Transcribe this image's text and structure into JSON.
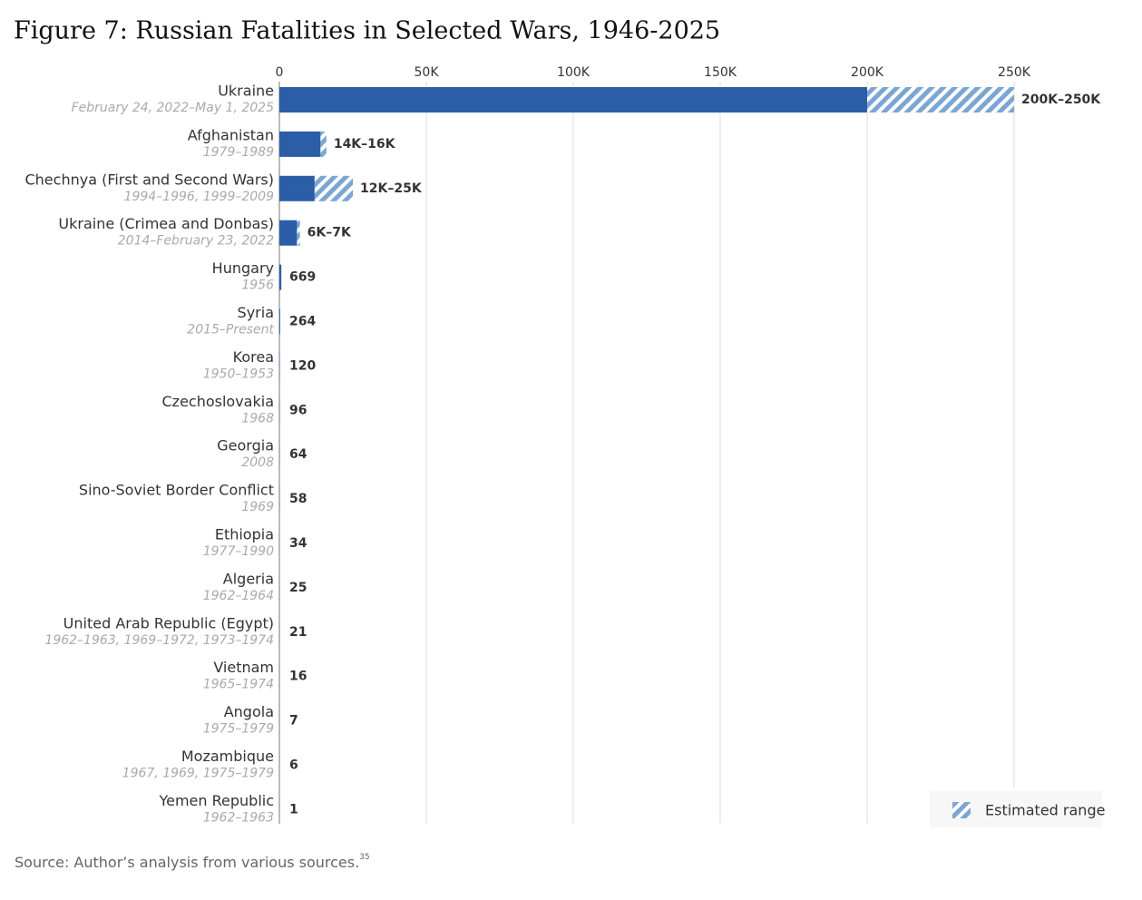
{
  "chart_data": {
    "type": "range-bar",
    "title": "Figure 7: Russian Fatalities in Selected Wars, 1946-2025",
    "categories": [
      "Ukraine",
      "Afghanistan",
      "Chechnya (First and Second Wars)",
      "Ukraine (Crimea and Donbas)",
      "Hungary",
      "Syria",
      "Korea",
      "Czechoslovakia",
      "Georgia",
      "Sino-Soviet Border Conflict",
      "Ethiopia",
      "Algeria",
      "United Arab Republic (Egypt)",
      "Vietnam",
      "Angola",
      "Mozambique",
      "Yemen Republic"
    ],
    "periods": [
      "February 24, 2022–May 1, 2025",
      "1979–1989",
      "1994–1996, 1999–2009",
      "2014–February 23, 2022",
      "1956",
      "2015–Present",
      "1950–1953",
      "1968",
      "2008",
      "1969",
      "1977–1990",
      "1962–1964",
      "1962–1963, 1969–1972, 1973–1974",
      "1965–1974",
      "1975–1979",
      "1967, 1969, 1975–1979",
      "1962–1963"
    ],
    "series": [
      {
        "color": "#2b5ea7",
        "values": [
          200000,
          14000,
          12000,
          6000,
          669,
          264,
          120,
          96,
          64,
          58,
          34,
          25,
          21,
          16,
          7,
          6,
          1
        ]
      },
      {
        "name": "Estimated range",
        "color": "#7ba6d4",
        "values": [
          250000,
          16000,
          25000,
          7000,
          null,
          null,
          null,
          null,
          null,
          null,
          null,
          null,
          null,
          null,
          null,
          null,
          null
        ]
      }
    ],
    "value_labels": [
      "200K–250K",
      "14K–16K",
      "12K–25K",
      "6K–7K",
      "669",
      "264",
      "120",
      "96",
      "64",
      "58",
      "34",
      "25",
      "21",
      "16",
      "7",
      "6",
      "1"
    ],
    "xlim": [
      0,
      250000
    ],
    "xticks": [
      0,
      {
        "value": 50000,
        "label": "50K"
      },
      {
        "value": 100000,
        "label": "100K"
      },
      {
        "value": 150000,
        "label": "150K"
      },
      {
        "value": 200000,
        "label": "200K"
      },
      {
        "value": 250000,
        "label": "250K"
      }
    ],
    "grid": true,
    "legend": "bottom-right",
    "source": "Source: Author’s analysis from various sources.",
    "footnote": "35"
  }
}
